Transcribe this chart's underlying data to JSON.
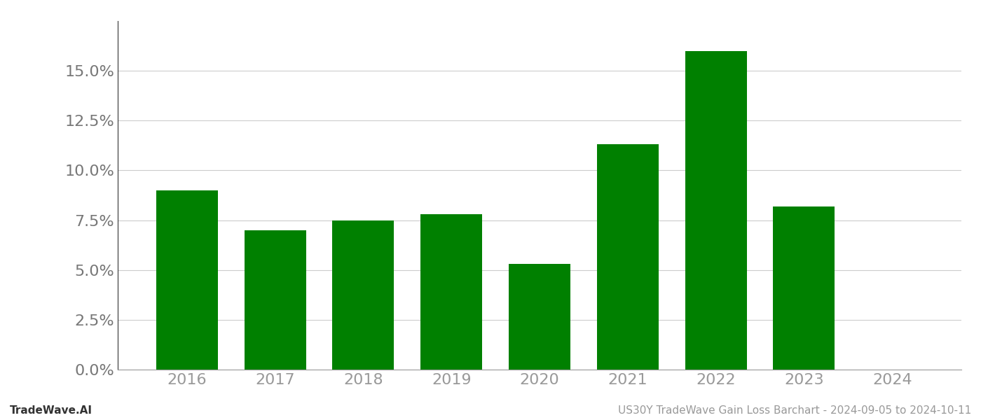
{
  "categories": [
    "2016",
    "2017",
    "2018",
    "2019",
    "2020",
    "2021",
    "2022",
    "2023",
    "2024"
  ],
  "values": [
    0.09,
    0.07,
    0.075,
    0.078,
    0.053,
    0.113,
    0.16,
    0.082,
    0.0
  ],
  "bar_color": "#008000",
  "background_color": "#ffffff",
  "grid_color": "#cccccc",
  "title": "US30Y TradeWave Gain Loss Barchart - 2024-09-05 to 2024-10-11",
  "footer_left": "TradeWave.AI",
  "ylim": [
    0,
    0.175
  ],
  "ytick_values": [
    0.0,
    0.025,
    0.05,
    0.075,
    0.1,
    0.125,
    0.15
  ],
  "title_fontsize": 11,
  "footer_fontsize": 11,
  "tick_fontsize": 16,
  "xtick_fontsize": 16,
  "tick_color": "#999999",
  "ytick_color": "#777777",
  "spine_color": "#999999",
  "bar_width": 0.7
}
